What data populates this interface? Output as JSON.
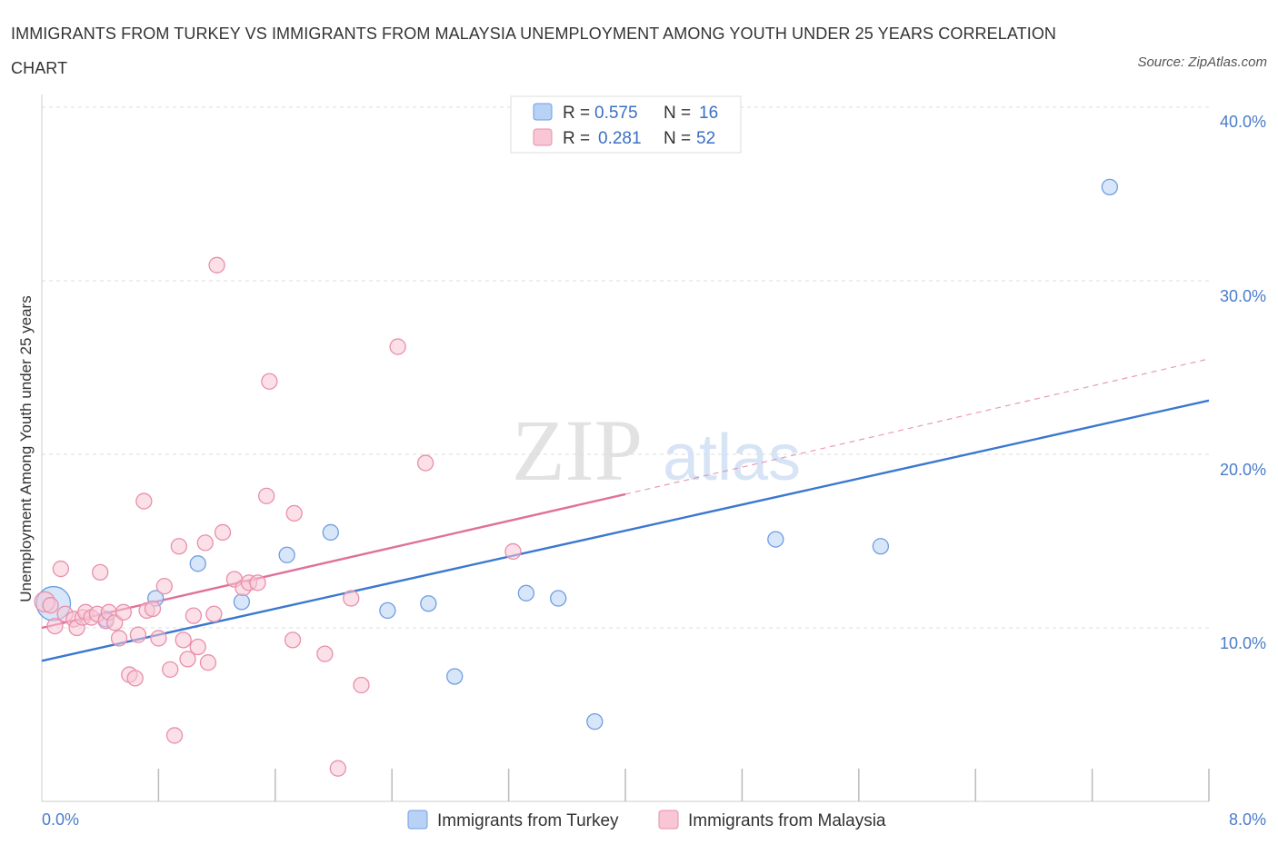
{
  "title": "IMMIGRANTS FROM TURKEY VS IMMIGRANTS FROM MALAYSIA UNEMPLOYMENT AMONG YOUTH UNDER 25 YEARS CORRELATION CHART",
  "source": "Source: ZipAtlas.com",
  "watermark": {
    "zip": "ZIP",
    "atlas": "atlas"
  },
  "colors": {
    "turkey_fill": "#b8d2f5",
    "turkey_stroke": "#6f9ee0",
    "turkey_line": "#3a78d0",
    "malaysia_fill": "#f8c6d5",
    "malaysia_stroke": "#e98fab",
    "malaysia_line": "#e0709a",
    "grid": "#dddddd",
    "axis_text": "#4a7cc9"
  },
  "legend": {
    "rows": [
      {
        "r_label": "R = ",
        "r_value": "0.575",
        "n_label": "N = ",
        "n_value": "16"
      },
      {
        "r_label": "R = ",
        "r_value": "0.281",
        "n_label": "N = ",
        "n_value": "52"
      }
    ]
  },
  "chart_data": {
    "type": "scatter",
    "xlabel": "",
    "ylabel": "Unemployment Among Youth under 25 years",
    "xlim": [
      0,
      8
    ],
    "ylim": [
      0,
      40
    ],
    "x_tick_labels": [
      "0.0%",
      "8.0%"
    ],
    "y_ticks": [
      10,
      20,
      30,
      40
    ],
    "y_tick_labels": [
      "10.0%",
      "20.0%",
      "30.0%",
      "40.0%"
    ],
    "grid": true,
    "series": [
      {
        "name": "Immigrants from Turkey",
        "R": 0.575,
        "N": 16,
        "points": [
          [
            0.08,
            11.4,
            2.2
          ],
          [
            0.44,
            10.5,
            1
          ],
          [
            0.78,
            11.7,
            1
          ],
          [
            1.07,
            13.7,
            1
          ],
          [
            1.37,
            11.5,
            1
          ],
          [
            1.68,
            14.2,
            1
          ],
          [
            1.98,
            15.5,
            1
          ],
          [
            2.37,
            11.0,
            1
          ],
          [
            2.65,
            11.4,
            1
          ],
          [
            2.83,
            7.2,
            1
          ],
          [
            3.32,
            12.0,
            1
          ],
          [
            3.54,
            11.7,
            1
          ],
          [
            3.79,
            4.6,
            1
          ],
          [
            5.03,
            15.1,
            1
          ],
          [
            5.75,
            14.7,
            1
          ],
          [
            7.32,
            35.4,
            1
          ]
        ],
        "trend": {
          "x0": 0,
          "y0": 8.1,
          "x1": 8,
          "y1": 23.1,
          "dashed_to": null
        }
      },
      {
        "name": "Immigrants from Malaysia",
        "R": 0.281,
        "N": 52,
        "points": [
          [
            0.02,
            11.5,
            1.3
          ],
          [
            0.06,
            11.3,
            1
          ],
          [
            0.09,
            10.1,
            1
          ],
          [
            0.13,
            13.4,
            1
          ],
          [
            0.16,
            10.8,
            1
          ],
          [
            0.22,
            10.5,
            1
          ],
          [
            0.24,
            10.0,
            1
          ],
          [
            0.28,
            10.6,
            1
          ],
          [
            0.3,
            10.9,
            1
          ],
          [
            0.34,
            10.6,
            1
          ],
          [
            0.38,
            10.8,
            1
          ],
          [
            0.4,
            13.2,
            1
          ],
          [
            0.44,
            10.4,
            1
          ],
          [
            0.46,
            10.9,
            1
          ],
          [
            0.5,
            10.3,
            1
          ],
          [
            0.53,
            9.4,
            1
          ],
          [
            0.56,
            10.9,
            1
          ],
          [
            0.6,
            7.3,
            1
          ],
          [
            0.64,
            7.1,
            1
          ],
          [
            0.66,
            9.6,
            1
          ],
          [
            0.7,
            17.3,
            1
          ],
          [
            0.72,
            11.0,
            1
          ],
          [
            0.76,
            11.1,
            1
          ],
          [
            0.8,
            9.4,
            1
          ],
          [
            0.84,
            12.4,
            1
          ],
          [
            0.88,
            7.6,
            1
          ],
          [
            0.91,
            3.8,
            1
          ],
          [
            0.94,
            14.7,
            1
          ],
          [
            0.97,
            9.3,
            1
          ],
          [
            1.0,
            8.2,
            1
          ],
          [
            1.04,
            10.7,
            1
          ],
          [
            1.07,
            8.9,
            1
          ],
          [
            1.12,
            14.9,
            1
          ],
          [
            1.14,
            8.0,
            1
          ],
          [
            1.18,
            10.8,
            1
          ],
          [
            1.2,
            30.9,
            1
          ],
          [
            1.24,
            15.5,
            1
          ],
          [
            1.32,
            12.8,
            1
          ],
          [
            1.38,
            12.3,
            1
          ],
          [
            1.42,
            12.6,
            1
          ],
          [
            1.48,
            12.6,
            1
          ],
          [
            1.54,
            17.6,
            1
          ],
          [
            1.56,
            24.2,
            1
          ],
          [
            1.72,
            9.3,
            1
          ],
          [
            1.73,
            16.6,
            1
          ],
          [
            1.94,
            8.5,
            1
          ],
          [
            2.03,
            1.9,
            1
          ],
          [
            2.12,
            11.7,
            1
          ],
          [
            2.19,
            6.7,
            1
          ],
          [
            2.44,
            26.2,
            1
          ],
          [
            2.63,
            19.5,
            1
          ],
          [
            3.23,
            14.4,
            1
          ]
        ],
        "trend": {
          "x0": 0,
          "y0": 10.0,
          "x1": 4,
          "y1": 17.7,
          "dashed_to": [
            8,
            25.5
          ]
        }
      }
    ]
  }
}
